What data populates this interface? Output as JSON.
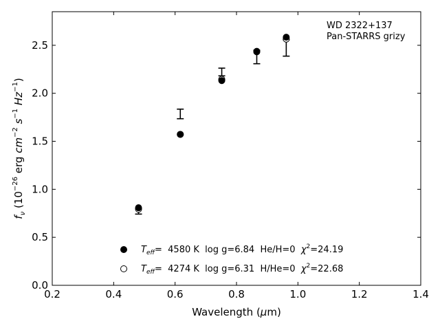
{
  "chart_data": {
    "type": "scatter",
    "annotation": [
      "WD 2322+137",
      "Pan-STARRS grizy"
    ],
    "xlim": [
      0.2,
      1.4
    ],
    "ylim": [
      0.0,
      2.85
    ],
    "xticks": [
      "0.2",
      "0.4",
      "0.6",
      "0.8",
      "1.0",
      "1.2",
      "1.4"
    ],
    "yticks": [
      "0.0",
      "0.5",
      "1.0",
      "1.5",
      "2.0",
      "2.5"
    ],
    "xtick_values": [
      0.2,
      0.4,
      0.6,
      0.8,
      1.0,
      1.2,
      1.4
    ],
    "ytick_values": [
      0.0,
      0.5,
      1.0,
      1.5,
      2.0,
      2.5
    ],
    "xlabel": {
      "pre": "Wavelength (",
      "greek": "μ",
      "post": "m)"
    },
    "ylabel": {
      "f": "f",
      "fsub": "ν",
      "open": " (10",
      "exp1": "−26",
      "erg": " erg ",
      "cm": "cm",
      "exp2": "−2",
      "s": " s",
      "exp3": "−1",
      "hz": " Hz",
      "exp4": "−1",
      "close": ")"
    },
    "observed": {
      "x": [
        0.481,
        0.617,
        0.752,
        0.866,
        0.962
      ],
      "y": [
        0.772,
        1.785,
        2.222,
        2.378,
        2.472
      ],
      "err": [
        0.03,
        0.05,
        0.04,
        0.07,
        0.085
      ]
    },
    "series": [
      {
        "marker": "filled",
        "x": [
          0.481,
          0.617,
          0.752,
          0.866,
          0.962
        ],
        "y": [
          0.808,
          1.572,
          2.132,
          2.437,
          2.584
        ],
        "legend": {
          "t": "T",
          "tsub": "eff",
          "rest": "=  4580 K  log g=6.84  He/H=0  ",
          "chi": "χ",
          "chisup": "2",
          "chival": "=24.19"
        }
      },
      {
        "marker": "open",
        "x": [
          0.481,
          0.617,
          0.752,
          0.866,
          0.962
        ],
        "y": [
          0.793,
          1.572,
          2.145,
          2.432,
          2.565
        ],
        "legend": {
          "t": "T",
          "tsub": "eff",
          "rest": "=  4274 K  log g=6.31  H/He=0  ",
          "chi": "χ",
          "chisup": "2",
          "chival": "=22.68"
        }
      }
    ]
  }
}
